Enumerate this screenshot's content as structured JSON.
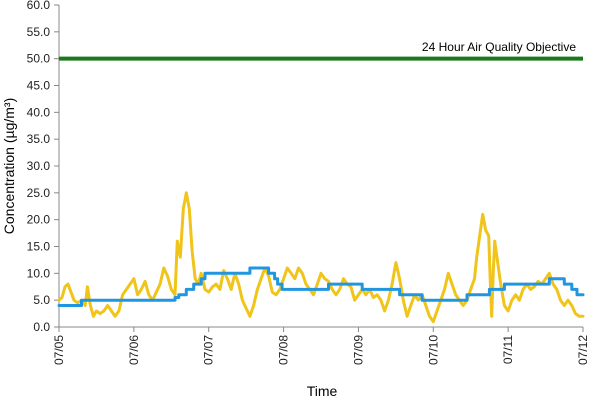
{
  "chart_data": {
    "type": "line",
    "xlabel": "Time",
    "ylabel": "Concentration (µg/m³)",
    "ylim": [
      0,
      60
    ],
    "y_ticks": [
      "0.0",
      "5.0",
      "10.0",
      "15.0",
      "20.0",
      "25.0",
      "30.0",
      "35.0",
      "40.0",
      "45.0",
      "50.0",
      "55.0",
      "60.0"
    ],
    "x_ticks": [
      "07/05",
      "07/06",
      "07/07",
      "07/08",
      "07/09",
      "07/10",
      "07/11",
      "07/12"
    ],
    "xlim": [
      0,
      7
    ],
    "grid": false,
    "legend": "none",
    "annotations": [
      {
        "text": "24 Hour Air Quality Objective"
      }
    ],
    "objective": {
      "value": 50,
      "color": "#1a7a1a"
    },
    "series": [
      {
        "color": "#f0c419",
        "points": [
          [
            0.0,
            5.0
          ],
          [
            0.04,
            5.5
          ],
          [
            0.08,
            7.5
          ],
          [
            0.12,
            8.0
          ],
          [
            0.16,
            6.5
          ],
          [
            0.2,
            5.0
          ],
          [
            0.25,
            4.5
          ],
          [
            0.3,
            5.0
          ],
          [
            0.35,
            4.0
          ],
          [
            0.38,
            7.5
          ],
          [
            0.42,
            4.0
          ],
          [
            0.46,
            2.0
          ],
          [
            0.5,
            3.0
          ],
          [
            0.55,
            2.5
          ],
          [
            0.6,
            3.0
          ],
          [
            0.65,
            4.0
          ],
          [
            0.7,
            3.0
          ],
          [
            0.75,
            2.0
          ],
          [
            0.8,
            3.0
          ],
          [
            0.85,
            6.0
          ],
          [
            0.9,
            7.0
          ],
          [
            0.95,
            8.0
          ],
          [
            1.0,
            9.0
          ],
          [
            1.05,
            6.0
          ],
          [
            1.1,
            7.0
          ],
          [
            1.15,
            8.5
          ],
          [
            1.2,
            6.0
          ],
          [
            1.25,
            5.0
          ],
          [
            1.3,
            6.5
          ],
          [
            1.35,
            8.0
          ],
          [
            1.4,
            11.0
          ],
          [
            1.45,
            9.5
          ],
          [
            1.5,
            7.0
          ],
          [
            1.55,
            6.0
          ],
          [
            1.58,
            16.0
          ],
          [
            1.62,
            13.0
          ],
          [
            1.66,
            22.0
          ],
          [
            1.7,
            25.0
          ],
          [
            1.74,
            22.0
          ],
          [
            1.78,
            14.0
          ],
          [
            1.82,
            9.0
          ],
          [
            1.86,
            8.0
          ],
          [
            1.9,
            10.0
          ],
          [
            1.95,
            7.0
          ],
          [
            2.0,
            6.5
          ],
          [
            2.05,
            7.5
          ],
          [
            2.1,
            8.0
          ],
          [
            2.15,
            7.0
          ],
          [
            2.2,
            10.5
          ],
          [
            2.25,
            9.0
          ],
          [
            2.3,
            7.0
          ],
          [
            2.35,
            10.0
          ],
          [
            2.4,
            8.0
          ],
          [
            2.45,
            5.0
          ],
          [
            2.5,
            3.5
          ],
          [
            2.55,
            2.0
          ],
          [
            2.6,
            4.0
          ],
          [
            2.65,
            7.0
          ],
          [
            2.7,
            9.0
          ],
          [
            2.75,
            11.0
          ],
          [
            2.8,
            9.5
          ],
          [
            2.85,
            6.5
          ],
          [
            2.9,
            6.0
          ],
          [
            2.95,
            7.0
          ],
          [
            3.0,
            9.0
          ],
          [
            3.05,
            11.0
          ],
          [
            3.1,
            10.0
          ],
          [
            3.15,
            9.0
          ],
          [
            3.2,
            11.0
          ],
          [
            3.25,
            10.0
          ],
          [
            3.3,
            8.0
          ],
          [
            3.35,
            7.0
          ],
          [
            3.4,
            6.0
          ],
          [
            3.45,
            8.0
          ],
          [
            3.5,
            10.0
          ],
          [
            3.55,
            9.0
          ],
          [
            3.6,
            8.5
          ],
          [
            3.65,
            7.0
          ],
          [
            3.7,
            6.0
          ],
          [
            3.75,
            7.0
          ],
          [
            3.8,
            9.0
          ],
          [
            3.85,
            8.0
          ],
          [
            3.9,
            7.5
          ],
          [
            3.95,
            5.0
          ],
          [
            4.0,
            6.0
          ],
          [
            4.05,
            7.0
          ],
          [
            4.1,
            6.0
          ],
          [
            4.15,
            7.0
          ],
          [
            4.2,
            5.5
          ],
          [
            4.25,
            6.0
          ],
          [
            4.3,
            5.0
          ],
          [
            4.35,
            3.0
          ],
          [
            4.4,
            5.0
          ],
          [
            4.45,
            8.0
          ],
          [
            4.5,
            12.0
          ],
          [
            4.55,
            9.0
          ],
          [
            4.6,
            5.0
          ],
          [
            4.65,
            2.0
          ],
          [
            4.7,
            4.0
          ],
          [
            4.75,
            6.0
          ],
          [
            4.8,
            5.0
          ],
          [
            4.85,
            6.0
          ],
          [
            4.9,
            4.0
          ],
          [
            4.95,
            2.0
          ],
          [
            5.0,
            1.0
          ],
          [
            5.05,
            3.0
          ],
          [
            5.1,
            5.0
          ],
          [
            5.15,
            7.0
          ],
          [
            5.2,
            10.0
          ],
          [
            5.25,
            8.0
          ],
          [
            5.3,
            6.0
          ],
          [
            5.35,
            5.0
          ],
          [
            5.4,
            4.0
          ],
          [
            5.45,
            5.0
          ],
          [
            5.5,
            7.0
          ],
          [
            5.55,
            9.0
          ],
          [
            5.58,
            13.0
          ],
          [
            5.62,
            17.0
          ],
          [
            5.66,
            21.0
          ],
          [
            5.7,
            18.0
          ],
          [
            5.74,
            17.0
          ],
          [
            5.76,
            9.0
          ],
          [
            5.78,
            2.0
          ],
          [
            5.8,
            10.0
          ],
          [
            5.82,
            16.0
          ],
          [
            5.86,
            12.0
          ],
          [
            5.9,
            8.0
          ],
          [
            5.95,
            4.0
          ],
          [
            6.0,
            3.0
          ],
          [
            6.05,
            5.0
          ],
          [
            6.1,
            6.0
          ],
          [
            6.15,
            5.0
          ],
          [
            6.2,
            7.0
          ],
          [
            6.25,
            8.0
          ],
          [
            6.3,
            7.0
          ],
          [
            6.35,
            7.5
          ],
          [
            6.4,
            8.5
          ],
          [
            6.45,
            8.0
          ],
          [
            6.5,
            9.0
          ],
          [
            6.55,
            10.0
          ],
          [
            6.6,
            8.0
          ],
          [
            6.65,
            7.0
          ],
          [
            6.7,
            5.0
          ],
          [
            6.75,
            4.0
          ],
          [
            6.8,
            5.0
          ],
          [
            6.85,
            4.0
          ],
          [
            6.9,
            2.5
          ],
          [
            6.95,
            2.0
          ],
          [
            7.0,
            2.0
          ]
        ]
      },
      {
        "color": "#2196e0",
        "points": [
          [
            0.0,
            4.0
          ],
          [
            0.3,
            4.0
          ],
          [
            0.3,
            5.0
          ],
          [
            1.55,
            5.0
          ],
          [
            1.55,
            5.5
          ],
          [
            1.6,
            5.5
          ],
          [
            1.6,
            6.0
          ],
          [
            1.7,
            6.0
          ],
          [
            1.7,
            7.0
          ],
          [
            1.8,
            7.0
          ],
          [
            1.8,
            8.0
          ],
          [
            1.9,
            8.0
          ],
          [
            1.9,
            9.0
          ],
          [
            1.95,
            9.0
          ],
          [
            1.95,
            10.0
          ],
          [
            2.55,
            10.0
          ],
          [
            2.55,
            11.0
          ],
          [
            2.8,
            11.0
          ],
          [
            2.8,
            10.0
          ],
          [
            2.88,
            10.0
          ],
          [
            2.88,
            9.0
          ],
          [
            2.92,
            9.0
          ],
          [
            2.92,
            8.0
          ],
          [
            2.98,
            8.0
          ],
          [
            2.98,
            7.0
          ],
          [
            3.6,
            7.0
          ],
          [
            3.6,
            8.0
          ],
          [
            4.05,
            8.0
          ],
          [
            4.05,
            7.0
          ],
          [
            4.55,
            7.0
          ],
          [
            4.55,
            6.0
          ],
          [
            4.85,
            6.0
          ],
          [
            4.85,
            5.0
          ],
          [
            5.45,
            5.0
          ],
          [
            5.45,
            6.0
          ],
          [
            5.75,
            6.0
          ],
          [
            5.75,
            7.0
          ],
          [
            5.95,
            7.0
          ],
          [
            5.95,
            8.0
          ],
          [
            6.55,
            8.0
          ],
          [
            6.55,
            9.0
          ],
          [
            6.75,
            9.0
          ],
          [
            6.75,
            8.0
          ],
          [
            6.85,
            8.0
          ],
          [
            6.85,
            7.0
          ],
          [
            6.92,
            7.0
          ],
          [
            6.92,
            6.0
          ],
          [
            7.0,
            6.0
          ]
        ]
      }
    ]
  }
}
